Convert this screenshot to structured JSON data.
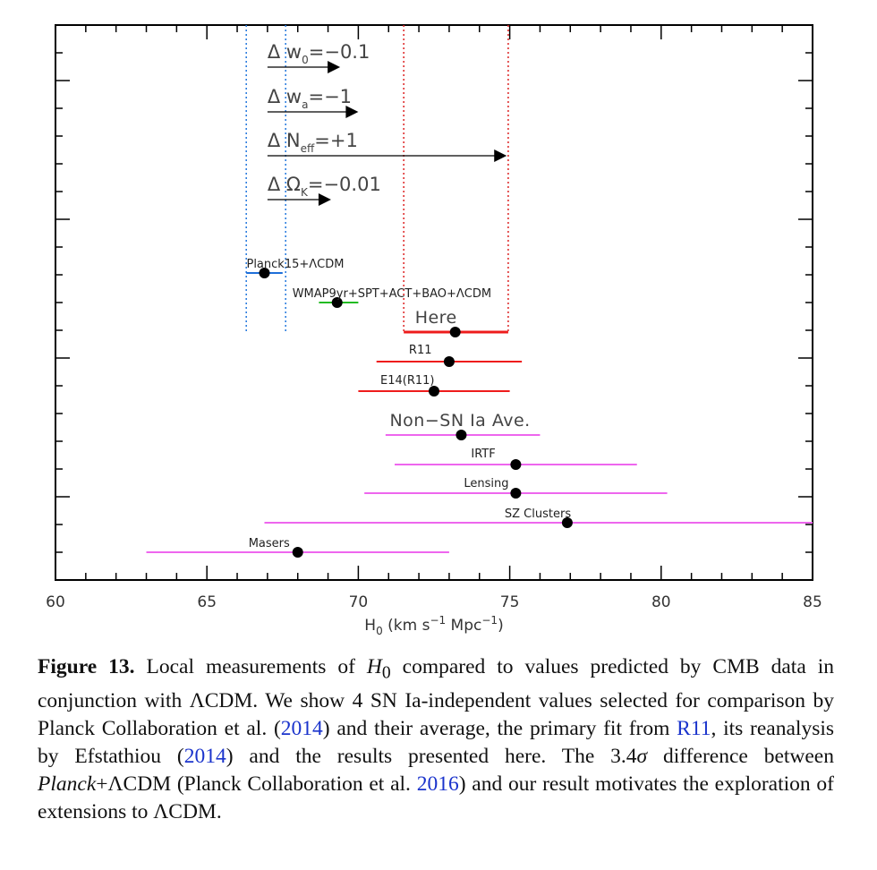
{
  "chart_data": {
    "type": "errorbar",
    "xlabel": "H₀ (km s⁻¹ Mpc⁻¹)",
    "xlabel_parts": {
      "main": "H",
      "sub": "0",
      "rest": " (km s",
      "sup1": "−1",
      "mid": " Mpc",
      "sup2": "−1",
      "end": ")"
    },
    "xlim": [
      60,
      85
    ],
    "xticks": [
      60,
      65,
      70,
      75,
      80,
      85
    ],
    "x_minor_step": 1,
    "grid": false,
    "colors": {
      "planck": "#1e6fd9",
      "wmap": "#22bb22",
      "local": "#ee1c1c",
      "nonsn": "#ee66ee",
      "vline_blue": "#2277dd",
      "vline_red": "#dd2222",
      "point": "#000000",
      "arrow": "#000000"
    },
    "measurements": [
      {
        "label": "Planck15+ΛCDM",
        "value": 66.9,
        "lo": 66.3,
        "hi": 67.5,
        "color_key": "planck",
        "style": "small"
      },
      {
        "label": "WMAP9yr+SPT+ACT+BAO+ΛCDM",
        "value": 69.3,
        "lo": 68.7,
        "hi": 70.0,
        "color_key": "wmap",
        "style": "small"
      },
      {
        "label": "Here",
        "value": 73.2,
        "lo": 71.5,
        "hi": 74.95,
        "color_key": "local",
        "style": "big"
      },
      {
        "label": "R11",
        "value": 73.0,
        "lo": 70.6,
        "hi": 75.4,
        "color_key": "local",
        "style": "small"
      },
      {
        "label": "E14(R11)",
        "value": 72.5,
        "lo": 70.0,
        "hi": 75.0,
        "color_key": "local",
        "style": "small"
      },
      {
        "label": "Non−SN Ia Ave.",
        "value": 73.4,
        "lo": 70.9,
        "hi": 76.0,
        "color_key": "nonsn",
        "style": "big"
      },
      {
        "label": "IRTF",
        "value": 75.2,
        "lo": 71.2,
        "hi": 79.2,
        "color_key": "nonsn",
        "style": "small"
      },
      {
        "label": "Lensing",
        "value": 75.2,
        "lo": 70.2,
        "hi": 80.2,
        "color_key": "nonsn",
        "style": "small"
      },
      {
        "label": "SZ Clusters",
        "value": 76.9,
        "lo": 66.9,
        "hi": 85.0,
        "color_key": "nonsn",
        "style": "small"
      },
      {
        "label": "Masers",
        "value": 68.0,
        "lo": 63.0,
        "hi": 73.0,
        "color_key": "nonsn",
        "style": "small"
      }
    ],
    "vlines": [
      {
        "x": 66.3,
        "color_key": "vline_blue"
      },
      {
        "x": 67.6,
        "color_key": "vline_blue"
      },
      {
        "x": 71.5,
        "color_key": "vline_red"
      },
      {
        "x": 74.95,
        "color_key": "vline_red"
      }
    ],
    "shifts": [
      {
        "prefix": "Δ",
        "param": "w",
        "sub": "0",
        "rhs": "=−0.1",
        "from": 67.0,
        "to": 69.4
      },
      {
        "prefix": "Δ",
        "param": "w",
        "sub": "a",
        "rhs": "=−1",
        "from": 67.0,
        "to": 70.0
      },
      {
        "prefix": "Δ",
        "param": "N",
        "sub": "eff",
        "rhs": "=+1",
        "from": 67.0,
        "to": 74.9
      },
      {
        "prefix": "Δ",
        "param": "Ω",
        "sub": "K",
        "rhs": "=−0.01",
        "from": 67.0,
        "to": 69.1
      }
    ]
  },
  "caption": {
    "fig_num": "Figure 13.",
    "t1": " Local measurements of ",
    "h0_main": "H",
    "h0_sub": "0",
    "t2": " compared to values predicted by CMB data in conjunction with ΛCDM. We show 4 SN Ia-independent values selected for comparison by Planck Collaboration et al. (",
    "cite1": "2014",
    "t3": ") and their average, the primary fit from ",
    "cite2": "R11",
    "t4": ", its reanalysis by Efstathiou (",
    "cite3": "2014",
    "t5": ") and the results presented here. The 3.4",
    "sigma": "σ",
    "t6": " difference between ",
    "planck_italic": "Planck",
    "t7": "+ΛCDM (Planck Collaboration et al. ",
    "cite4": "2016",
    "t8": ") and our result motivates the exploration of extensions to ΛCDM."
  }
}
